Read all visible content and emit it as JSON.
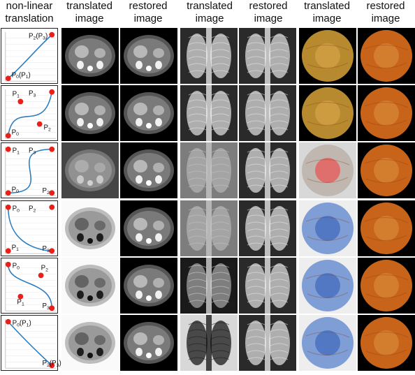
{
  "headers": {
    "curve": [
      "non-linear",
      "translation"
    ],
    "ct_translated": [
      "translated",
      "image"
    ],
    "ct_restored": [
      "restored",
      "image"
    ],
    "xray_translated": [
      "translated",
      "image"
    ],
    "xray_restored": [
      "restored",
      "image"
    ],
    "fundus_translated": [
      "translated",
      "image"
    ],
    "fundus_restored": [
      "restored",
      "image"
    ]
  },
  "rows": [
    {
      "points": [
        {
          "main": "P",
          "sub": "2",
          "extra": "(P",
          "extrasub": "3",
          "tail": ")",
          "pos": "top-right"
        },
        {
          "main": "P",
          "sub": "0",
          "extra": "(P",
          "extrasub": "1",
          "tail": ")",
          "pos": "bottom-left"
        }
      ],
      "ct_style": "normal",
      "xray_style": "normal",
      "fundus_style": "yellow"
    },
    {
      "points": [
        {
          "main": "P",
          "sub": "1",
          "pos": "p1-mid"
        },
        {
          "main": "P",
          "sub": "3",
          "pos": "top-right"
        },
        {
          "main": "P",
          "sub": "0",
          "pos": "bottom-left"
        },
        {
          "main": "P",
          "sub": "2",
          "pos": "p2-low"
        }
      ],
      "ct_style": "normal",
      "xray_style": "normal",
      "fundus_style": "yellow"
    },
    {
      "points": [
        {
          "main": "P",
          "sub": "1",
          "pos": "top-left"
        },
        {
          "main": "P",
          "sub": "3",
          "pos": "top-right"
        },
        {
          "main": "P",
          "sub": "0",
          "pos": "bottom-left"
        },
        {
          "main": "P",
          "sub": "2",
          "pos": "bottom-right"
        }
      ],
      "ct_style": "flat",
      "xray_style": "flat",
      "fundus_style": "pale"
    },
    {
      "points": [
        {
          "main": "P",
          "sub": "0",
          "pos": "top-left"
        },
        {
          "main": "P",
          "sub": "2",
          "pos": "top-right"
        },
        {
          "main": "P",
          "sub": "1",
          "pos": "bottom-left"
        },
        {
          "main": "P",
          "sub": "3",
          "pos": "bottom-right"
        }
      ],
      "ct_style": "bright",
      "xray_style": "flat",
      "fundus_style": "blue"
    },
    {
      "points": [
        {
          "main": "P",
          "sub": "0",
          "pos": "top-left"
        },
        {
          "main": "P",
          "sub": "2",
          "pos": "p2-upper"
        },
        {
          "main": "P",
          "sub": "1",
          "pos": "p1-lower"
        },
        {
          "main": "P",
          "sub": "3",
          "pos": "bottom-right"
        }
      ],
      "ct_style": "inverted",
      "xray_style": "dark",
      "fundus_style": "blue"
    },
    {
      "points": [
        {
          "main": "P",
          "sub": "0",
          "extra": "(P",
          "extrasub": "1",
          "tail": ")",
          "pos": "top-left"
        },
        {
          "main": "P",
          "sub": "2",
          "extra": "(P",
          "extrasub": "3",
          "tail": ")",
          "pos": "bottom-right"
        }
      ],
      "ct_style": "inverted",
      "xray_style": "inverted",
      "fundus_style": "blue"
    }
  ],
  "colors": {
    "curve": "#2b7bbf",
    "point": "#e8201a",
    "ct_bg": "#000000",
    "fundus_orange": "#c8641a",
    "fundus_blue": "#3a64b8"
  }
}
